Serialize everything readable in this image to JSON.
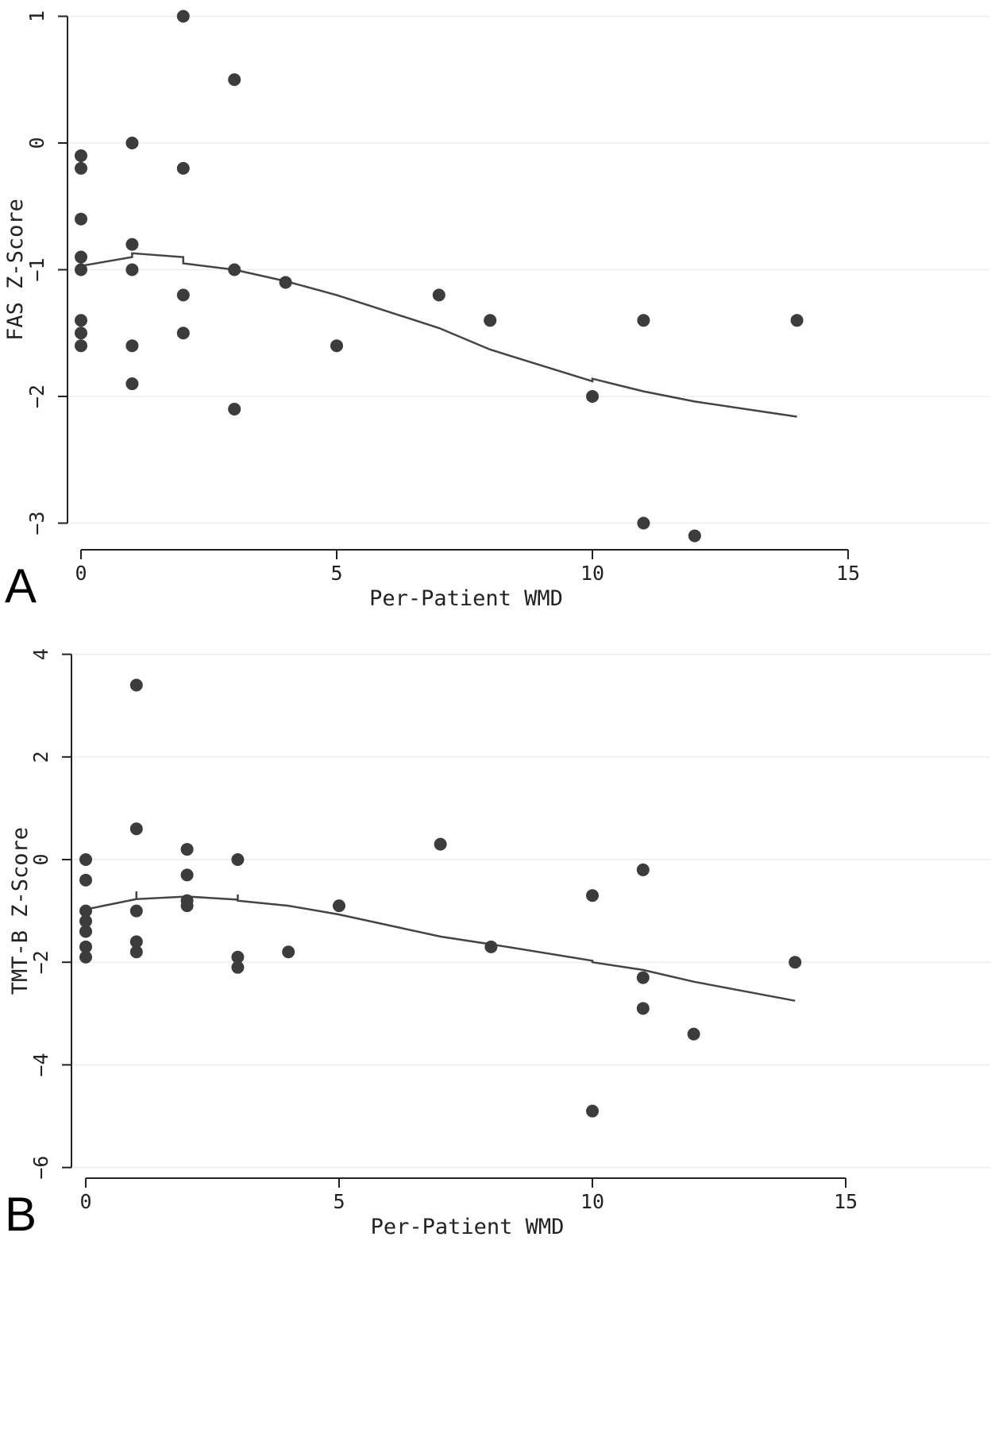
{
  "chart_data": [
    {
      "type": "scatter",
      "panel_label": "A",
      "xlabel": "Per-Patient WMD",
      "ylabel": "FAS Z-Score",
      "xlim": [
        -0.5,
        15.3
      ],
      "ylim": [
        -3.2,
        1.05
      ],
      "xticks": [
        0,
        5,
        10,
        15
      ],
      "yticks": [
        1,
        0,
        -1,
        -2,
        -3
      ],
      "ytick_labels": [
        "1",
        "0",
        "−1",
        "−2",
        "−3"
      ],
      "grid": true,
      "points": [
        [
          0,
          -0.1
        ],
        [
          0,
          -0.2
        ],
        [
          0,
          -0.6
        ],
        [
          0,
          -0.9
        ],
        [
          0,
          -1.0
        ],
        [
          0,
          -1.4
        ],
        [
          0,
          -1.5
        ],
        [
          0,
          -1.6
        ],
        [
          1,
          0.0
        ],
        [
          1,
          -0.8
        ],
        [
          1,
          -1.0
        ],
        [
          1,
          -1.6
        ],
        [
          1,
          -1.9
        ],
        [
          2,
          1.0
        ],
        [
          2,
          -0.2
        ],
        [
          2,
          -1.2
        ],
        [
          2,
          -1.5
        ],
        [
          3,
          0.5
        ],
        [
          3,
          -1.0
        ],
        [
          3,
          -2.1
        ],
        [
          4,
          -1.1
        ],
        [
          5,
          -1.6
        ],
        [
          7,
          -1.2
        ],
        [
          8,
          -1.4
        ],
        [
          10,
          -2.0
        ],
        [
          11,
          -1.4
        ],
        [
          11,
          -3.0
        ],
        [
          12,
          -3.1
        ],
        [
          14,
          -1.4
        ]
      ],
      "fit_line": [
        [
          0,
          -0.97
        ],
        [
          1,
          -0.9
        ],
        [
          1,
          -0.87
        ],
        [
          2,
          -0.9
        ],
        [
          2,
          -0.95
        ],
        [
          3,
          -1.0
        ],
        [
          4,
          -1.09
        ],
        [
          5,
          -1.2
        ],
        [
          7,
          -1.46
        ],
        [
          8,
          -1.63
        ],
        [
          10,
          -1.88
        ],
        [
          10,
          -1.86
        ],
        [
          11,
          -1.96
        ],
        [
          12,
          -2.04
        ],
        [
          14,
          -2.16
        ]
      ]
    },
    {
      "type": "scatter",
      "panel_label": "B",
      "xlabel": "Per-Patient WMD",
      "ylabel": "TMT-B Z-Score",
      "xlim": [
        -0.3,
        15.3
      ],
      "ylim": [
        -6.1,
        4.5
      ],
      "xticks": [
        0,
        5,
        10,
        15
      ],
      "yticks": [
        4,
        2,
        0,
        -2,
        -4,
        -6
      ],
      "ytick_labels": [
        "4",
        "2",
        "0",
        "−2",
        "−4",
        "−6"
      ],
      "grid": true,
      "points": [
        [
          0,
          0.0
        ],
        [
          0,
          -0.4
        ],
        [
          0,
          -1.0
        ],
        [
          0,
          -1.2
        ],
        [
          0,
          -1.4
        ],
        [
          0,
          -1.7
        ],
        [
          0,
          -1.9
        ],
        [
          1,
          3.4
        ],
        [
          1,
          0.6
        ],
        [
          1,
          -1.0
        ],
        [
          1,
          -1.6
        ],
        [
          1,
          -1.8
        ],
        [
          2,
          0.2
        ],
        [
          2,
          -0.3
        ],
        [
          2,
          -0.8
        ],
        [
          2,
          -0.9
        ],
        [
          3,
          0.0
        ],
        [
          3,
          -1.9
        ],
        [
          3,
          -2.1
        ],
        [
          4,
          -1.8
        ],
        [
          5,
          -0.9
        ],
        [
          7,
          0.3
        ],
        [
          8,
          -1.7
        ],
        [
          10,
          -0.7
        ],
        [
          10,
          -4.9
        ],
        [
          11,
          -0.2
        ],
        [
          11,
          -2.3
        ],
        [
          11,
          -2.9
        ],
        [
          12,
          -3.4
        ],
        [
          14,
          -2.0
        ]
      ],
      "fit_line": [
        [
          0,
          -0.97
        ],
        [
          1,
          -0.77
        ],
        [
          1,
          -0.62
        ],
        [
          1,
          -0.77
        ],
        [
          2,
          -0.72
        ],
        [
          3,
          -0.78
        ],
        [
          3,
          -0.68
        ],
        [
          3,
          -0.8
        ],
        [
          4,
          -0.9
        ],
        [
          5,
          -1.07
        ],
        [
          7,
          -1.5
        ],
        [
          8,
          -1.65
        ],
        [
          10,
          -1.97
        ],
        [
          10,
          -2.0
        ],
        [
          11,
          -2.15
        ],
        [
          12,
          -2.38
        ],
        [
          14,
          -2.75
        ]
      ]
    }
  ]
}
